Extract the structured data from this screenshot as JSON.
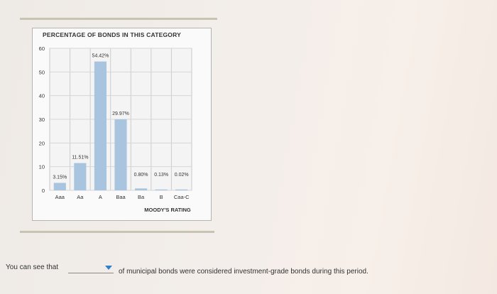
{
  "chart_data": {
    "type": "bar",
    "title": "PERCENTAGE OF BONDS IN THIS CATEGORY",
    "xlabel": "MOODY'S RATING",
    "ylabel": "",
    "categories": [
      "Aaa",
      "Aa",
      "A",
      "Baa",
      "Ba",
      "B",
      "Caa-C"
    ],
    "values": [
      3.15,
      11.51,
      54.42,
      29.97,
      0.8,
      0.13,
      0.02
    ],
    "data_labels": [
      "3.15%",
      "11.51%",
      "54.42%",
      "29.97%",
      "0.80%",
      "0.13%",
      "0.02%"
    ],
    "yticks": [
      "0",
      "10",
      "20",
      "30",
      "40",
      "50",
      "60"
    ],
    "ylim": [
      0,
      60
    ],
    "grid": true,
    "bar_color": "#a9c4de"
  },
  "question": {
    "prompt": "You can see that",
    "dropdown_value": "",
    "after": "of municipal bonds were considered investment-grade bonds during this period."
  }
}
